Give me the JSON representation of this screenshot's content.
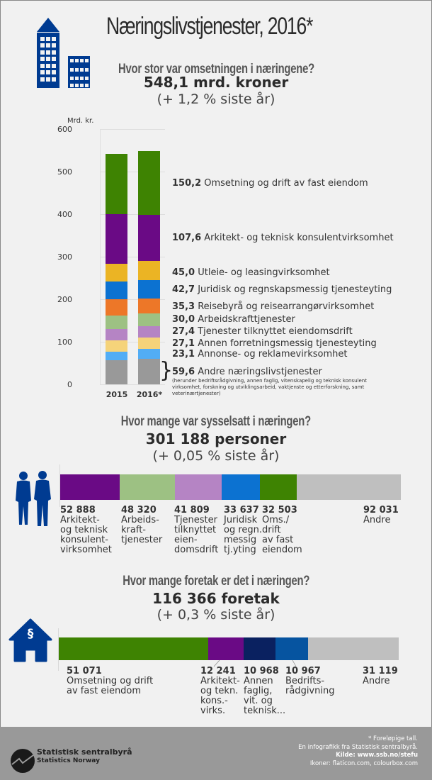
{
  "header": {
    "title": "Næringslivstjenester, 2016*",
    "icon": "buildings-icon"
  },
  "revenue": {
    "question": "Hvor stor var omsetningen i næringene?",
    "total": "548,1 mrd. kroner",
    "change": "(+ 1,2 % siste år)",
    "legend": [
      {
        "value": "150,2",
        "label": "Omsetning og drift av fast eiendom"
      },
      {
        "value": "107,6",
        "label": "Arkitekt- og teknisk konsulentvirksomhet"
      },
      {
        "value": "45,0",
        "label": "Utleie- og leasingvirksomhet"
      },
      {
        "value": "42,7",
        "label": "Juridisk og regnskapsmessig tjenesteyting"
      },
      {
        "value": "35,3",
        "label": "Reisebyrå og reisearrangørvirksomhet"
      },
      {
        "value": "30,0",
        "label": "Arbeidskrafttjenester"
      },
      {
        "value": "27,4",
        "label": "Tjenester tilknyttet eiendomsdrift"
      },
      {
        "value": "27,1",
        "label": "Annen forretningsmessig tjenesteyting"
      },
      {
        "value": "23,1",
        "label": "Annonse- og reklamevirksomhet"
      },
      {
        "value": "59,6",
        "label": "Andre næringslivstjenester"
      }
    ],
    "note": "(herunder bedriftsrådgivning, annen faglig, vitenskapelig og teknisk konsulent virksomhet, forskning og utviklingsarbeid, vaktjenste og etterforskning, samt veterinærtjenester)"
  },
  "employment": {
    "question": "Hvor mange var sysselsatt i næringen?",
    "total": "301 188 personer",
    "change": "(+ 0,05 % siste år)",
    "icon": "people-icon",
    "items": [
      {
        "value": "52 888",
        "label": "Arkitekt-\nog teknisk\nkonsulent-\nvirksomhet",
        "color": "#6a0a85"
      },
      {
        "value": "48 320",
        "label": "Arbeids-\nkraft-\ntjenester",
        "color": "#9dc183"
      },
      {
        "value": "41 809",
        "label": "Tjenester\ntilknyttet\neien-\ndomsdrift",
        "color": "#b584c4"
      },
      {
        "value": "33 637",
        "label": "Juridisk\nog regn.\nmessig\ntj.yting",
        "color": "#0c72d1"
      },
      {
        "value": "32 503",
        "label": "Oms./\ndrift\nav fast\neiendom",
        "color": "#3e8302"
      },
      {
        "value": "92 031",
        "label": "Andre",
        "color": "#bfbfbf"
      }
    ]
  },
  "enterprises": {
    "question": "Hvor mange foretak er det i næringen?",
    "total": "116 366 foretak",
    "change": "(+ 0,3 % siste år)",
    "icon": "house-paragraph-icon",
    "icon_glyph": "§",
    "items": [
      {
        "value": "51 071",
        "label": "Omsetning og drift\nav fast eiendom",
        "color": "#3e8302"
      },
      {
        "value": "12 241",
        "label": "Arkitekt-\nog tekn.\nkons.-\nvirks.",
        "color": "#6a0a85"
      },
      {
        "value": "10 968",
        "label": "Annen\nfaglig,\nvit. og\nteknisk...",
        "color": "#0a2160"
      },
      {
        "value": "10 967",
        "label": "Bedrifts-\nrådgivning",
        "color": "#0654a0"
      },
      {
        "value": "31 119",
        "label": "Andre",
        "color": "#bfbfbf"
      }
    ]
  },
  "footer": {
    "note": "* Foreløpige tall.",
    "credit": "En infografikk fra Statistisk sentralbyrå.",
    "source": "Kilde: www.ssb.no/stefu",
    "icons_credit": "Ikoner: flaticon.com, colourbox.com",
    "logo_name": "Statistisk sentralbyrå",
    "logo_name_en": "Statistics Norway"
  },
  "chart_data": [
    {
      "type": "bar",
      "stacked": true,
      "title": "Hvor stor var omsetningen i næringene?",
      "ylabel": "Mrd. kr.",
      "xlabel": "",
      "ylim": [
        0,
        600
      ],
      "yticks": [
        "0",
        "100",
        "200",
        "300",
        "400",
        "500",
        "600"
      ],
      "categories": [
        "2015",
        "2016*"
      ],
      "series": [
        {
          "name": "Andre næringslivstjenester",
          "color": "#999999",
          "values": [
            56.0,
            59.6
          ]
        },
        {
          "name": "Annonse- og reklamevirksomhet",
          "color": "#52adf5",
          "values": [
            21.5,
            23.1
          ]
        },
        {
          "name": "Annen forretningsmessig tjenesteyting",
          "color": "#f5d37a",
          "values": [
            25.5,
            27.1
          ]
        },
        {
          "name": "Tjenester tilknyttet eiendomsdrift",
          "color": "#b584c4",
          "values": [
            26.5,
            27.4
          ]
        },
        {
          "name": "Arbeidskrafttjenester",
          "color": "#9dc183",
          "values": [
            32.0,
            30.0
          ]
        },
        {
          "name": "Reisebyrå og reisearrangørvirksomhet",
          "color": "#ed7728",
          "values": [
            38.5,
            35.3
          ]
        },
        {
          "name": "Juridisk og regnskapsmessig tjenesteyting",
          "color": "#0c72d1",
          "values": [
            41.0,
            42.7
          ]
        },
        {
          "name": "Utleie- og leasingvirksomhet",
          "color": "#ebb424",
          "values": [
            42.0,
            45.0
          ]
        },
        {
          "name": "Arkitekt- og teknisk konsulentvirksomhet",
          "color": "#6a0a85",
          "values": [
            117.0,
            107.6
          ]
        },
        {
          "name": "Omsetning og drift av fast eiendom",
          "color": "#3e8302",
          "values": [
            141.5,
            150.2
          ]
        }
      ]
    },
    {
      "type": "bar",
      "orientation": "horizontal",
      "stacked": true,
      "title": "Hvor mange var sysselsatt i næringen?",
      "categories": [
        "Arkitekt- og teknisk konsulentvirksomhet",
        "Arbeidskrafttjenester",
        "Tjenester tilknyttet eiendomsdrift",
        "Juridisk og regn.messig tj.yting",
        "Oms./drift av fast eiendom",
        "Andre"
      ],
      "values": [
        52888,
        48320,
        41809,
        33637,
        32503,
        92031
      ],
      "total": 301188
    },
    {
      "type": "bar",
      "orientation": "horizontal",
      "stacked": true,
      "title": "Hvor mange foretak er det i næringen?",
      "categories": [
        "Omsetning og drift av fast eiendom",
        "Arkitekt- og tekn. kons.-virks.",
        "Annen faglig, vit. og teknisk...",
        "Bedriftsrådgivning",
        "Andre"
      ],
      "values": [
        51071,
        12241,
        10968,
        10967,
        31119
      ],
      "total": 116366
    }
  ]
}
